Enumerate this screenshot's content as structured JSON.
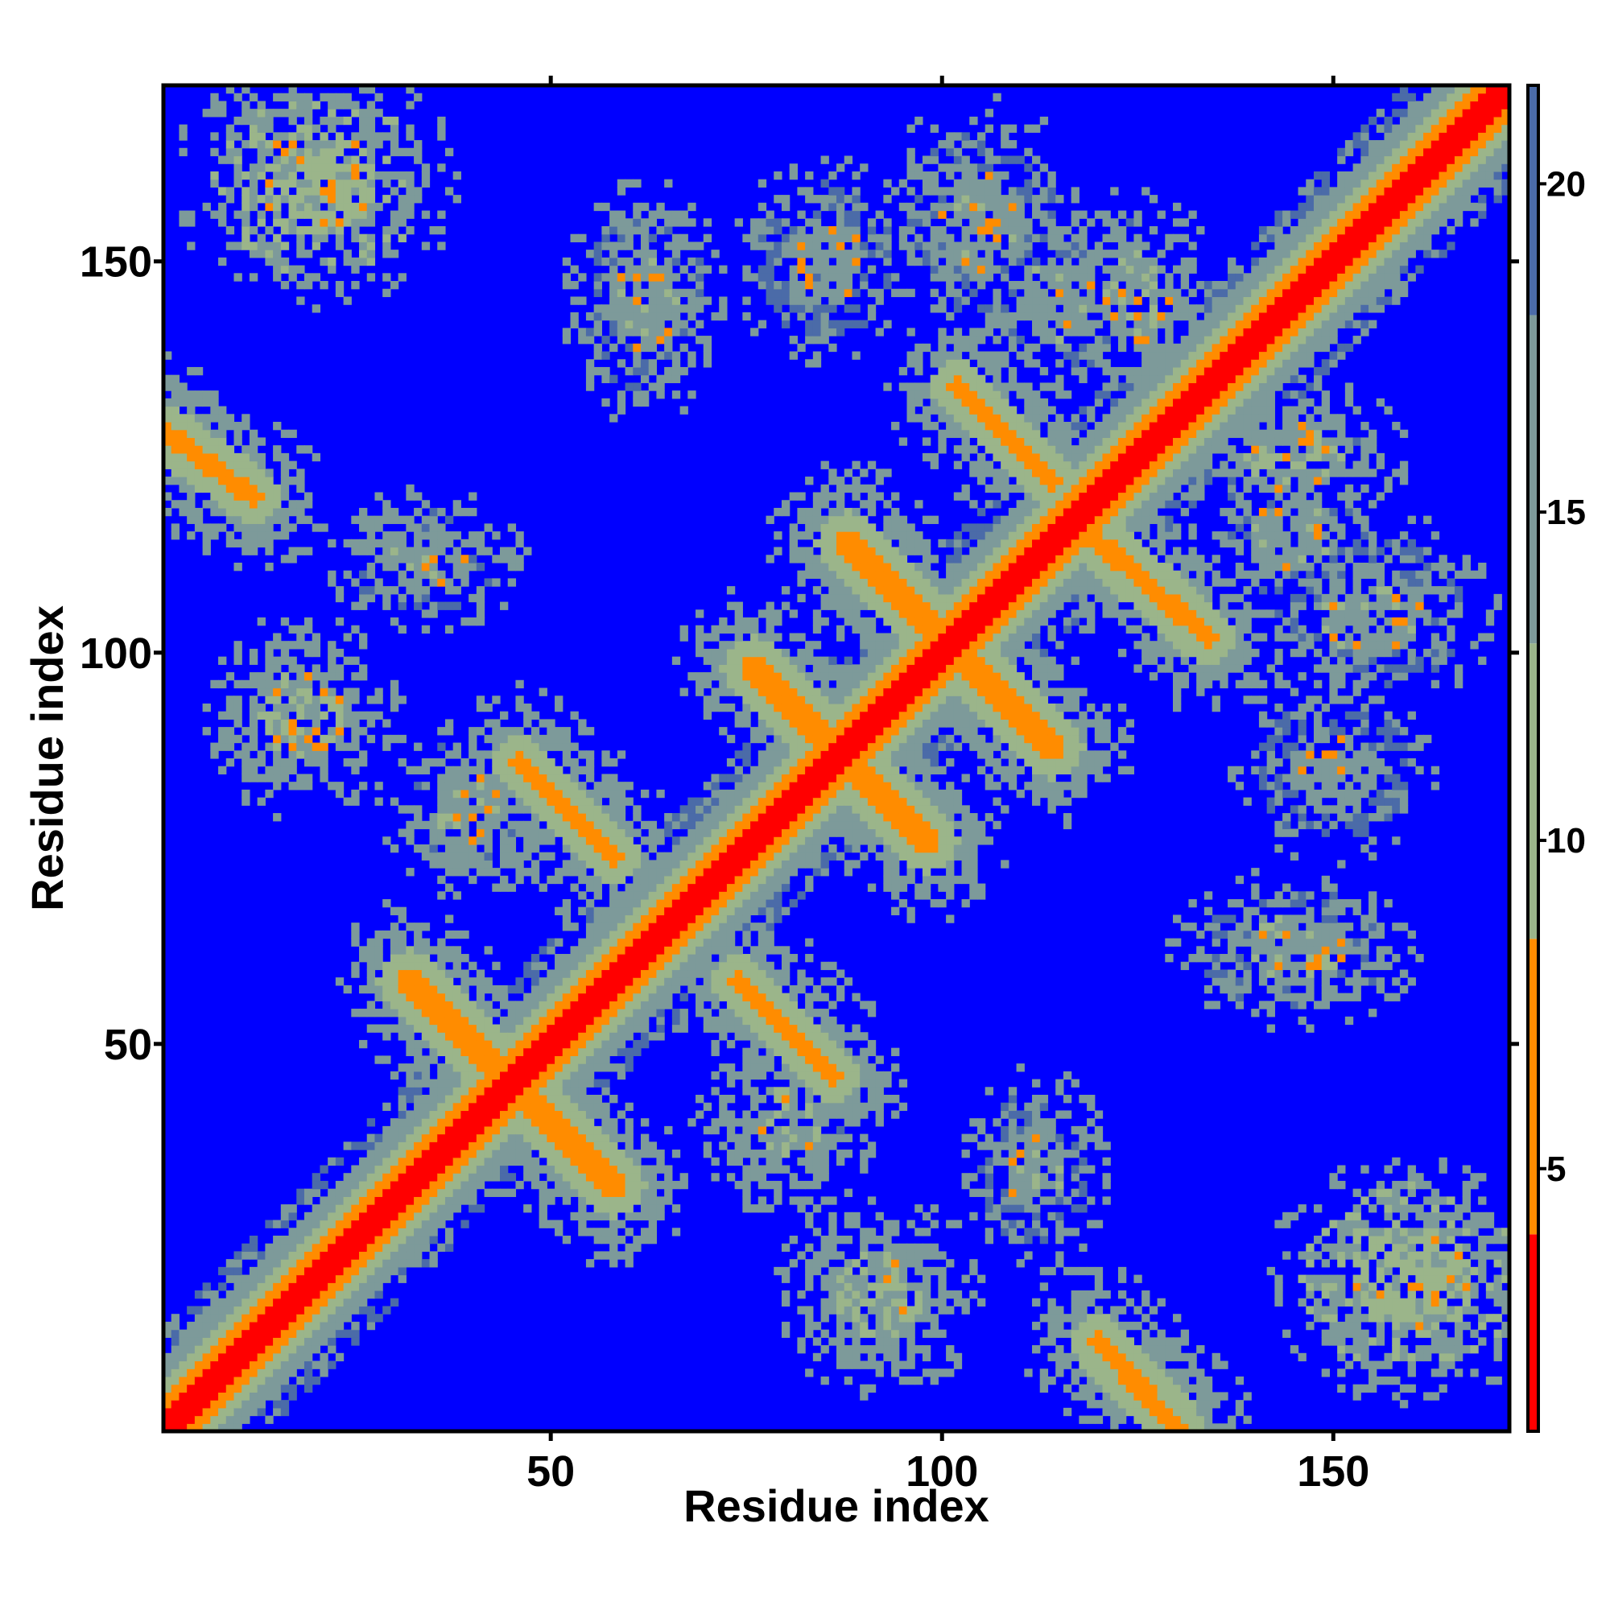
{
  "chart_data": {
    "type": "heatmap",
    "title": "",
    "xlabel": "Residue index",
    "ylabel": "Residue index",
    "n_residues": 172,
    "xlim": [
      1,
      172
    ],
    "ylim": [
      1,
      172
    ],
    "x_ticks": [
      50,
      100,
      150
    ],
    "y_ticks": [
      50,
      100,
      150
    ],
    "x_tick_labels": [
      "50",
      "100",
      "150"
    ],
    "y_tick_labels": [
      "50",
      "100",
      "150"
    ],
    "colorbar": {
      "range": [
        1,
        21.5
      ],
      "ticks": [
        5,
        10,
        15,
        20
      ],
      "tick_labels": [
        "5",
        "10",
        "15",
        "20"
      ],
      "bands": [
        {
          "from": 1,
          "to": 4,
          "color": "#ff0000"
        },
        {
          "from": 4,
          "to": 8.5,
          "color": "#ff8c00"
        },
        {
          "from": 8.5,
          "to": 13,
          "color": "#9bb58a"
        },
        {
          "from": 13,
          "to": 18,
          "color": "#7d9a9a"
        },
        {
          "from": 18,
          "to": 21.5,
          "color": "#4b6ba8"
        }
      ]
    },
    "background_color": "#0000ff",
    "value_meaning": "inter-residue distance; blue = beyond cutoff (>21)",
    "diagonal_band": {
      "core_value": 2,
      "halfwidth": 9
    },
    "features": [
      {
        "kind": "anti",
        "p1": [
          32,
          58
        ],
        "p2": [
          58,
          32
        ],
        "halfwidth": 2.5,
        "core": 6
      },
      {
        "kind": "anti",
        "p1": [
          46,
          86
        ],
        "p2": [
          58,
          74
        ],
        "halfwidth": 2.0,
        "core": 6
      },
      {
        "kind": "anti",
        "p1": [
          74,
          58
        ],
        "p2": [
          86,
          46
        ],
        "halfwidth": 2.0,
        "core": 6
      },
      {
        "kind": "anti",
        "p1": [
          76,
          98
        ],
        "p2": [
          98,
          76
        ],
        "halfwidth": 2.5,
        "core": 6
      },
      {
        "kind": "anti",
        "p1": [
          88,
          114
        ],
        "p2": [
          114,
          88
        ],
        "halfwidth": 2.5,
        "core": 6
      },
      {
        "kind": "anti",
        "p1": [
          102,
          134
        ],
        "p2": [
          114,
          122
        ],
        "halfwidth": 2.0,
        "core": 6
      },
      {
        "kind": "anti",
        "p1": [
          118,
          116
        ],
        "p2": [
          134,
          102
        ],
        "halfwidth": 2.0,
        "core": 6
      },
      {
        "kind": "anti",
        "p1": [
          1,
          128
        ],
        "p2": [
          12,
          120
        ],
        "halfwidth": 2.0,
        "core": 6
      },
      {
        "kind": "anti",
        "p1": [
          120,
          12
        ],
        "p2": [
          130,
          1
        ],
        "halfwidth": 2.0,
        "core": 6
      },
      {
        "kind": "blob",
        "c": [
          20,
          160
        ],
        "rx": 14,
        "ry": 12,
        "core": 9
      },
      {
        "kind": "blob",
        "c": [
          160,
          20
        ],
        "rx": 14,
        "ry": 12,
        "core": 9
      },
      {
        "kind": "blob",
        "c": [
          62,
          145
        ],
        "rx": 8,
        "ry": 12,
        "core": 12
      },
      {
        "kind": "blob",
        "c": [
          145,
          62
        ],
        "rx": 12,
        "ry": 8,
        "core": 12
      },
      {
        "kind": "blob",
        "c": [
          105,
          155
        ],
        "rx": 10,
        "ry": 12,
        "core": 12
      },
      {
        "kind": "blob",
        "c": [
          155,
          105
        ],
        "rx": 12,
        "ry": 10,
        "core": 12
      },
      {
        "kind": "blob",
        "c": [
          18,
          92
        ],
        "rx": 10,
        "ry": 10,
        "core": 10
      },
      {
        "kind": "blob",
        "c": [
          92,
          18
        ],
        "rx": 10,
        "ry": 10,
        "core": 10
      },
      {
        "kind": "blob",
        "c": [
          34,
          112
        ],
        "rx": 10,
        "ry": 7,
        "core": 12
      },
      {
        "kind": "blob",
        "c": [
          112,
          34
        ],
        "rx": 7,
        "ry": 10,
        "core": 12
      },
      {
        "kind": "blob",
        "c": [
          145,
          115
        ],
        "rx": 10,
        "ry": 8,
        "core": 12
      },
      {
        "kind": "blob",
        "c": [
          115,
          145
        ],
        "rx": 8,
        "ry": 10,
        "core": 12
      },
      {
        "kind": "blob",
        "c": [
          150,
          85
        ],
        "rx": 10,
        "ry": 9,
        "core": 13
      },
      {
        "kind": "blob",
        "c": [
          85,
          150
        ],
        "rx": 9,
        "ry": 10,
        "core": 13
      },
      {
        "kind": "blob",
        "c": [
          40,
          80
        ],
        "rx": 9,
        "ry": 9,
        "core": 11
      },
      {
        "kind": "blob",
        "c": [
          80,
          40
        ],
        "rx": 9,
        "ry": 9,
        "core": 11
      },
      {
        "kind": "blob",
        "c": [
          125,
          145
        ],
        "rx": 8,
        "ry": 11,
        "core": 11
      },
      {
        "kind": "blob",
        "c": [
          145,
          125
        ],
        "rx": 11,
        "ry": 8,
        "core": 11
      }
    ]
  }
}
